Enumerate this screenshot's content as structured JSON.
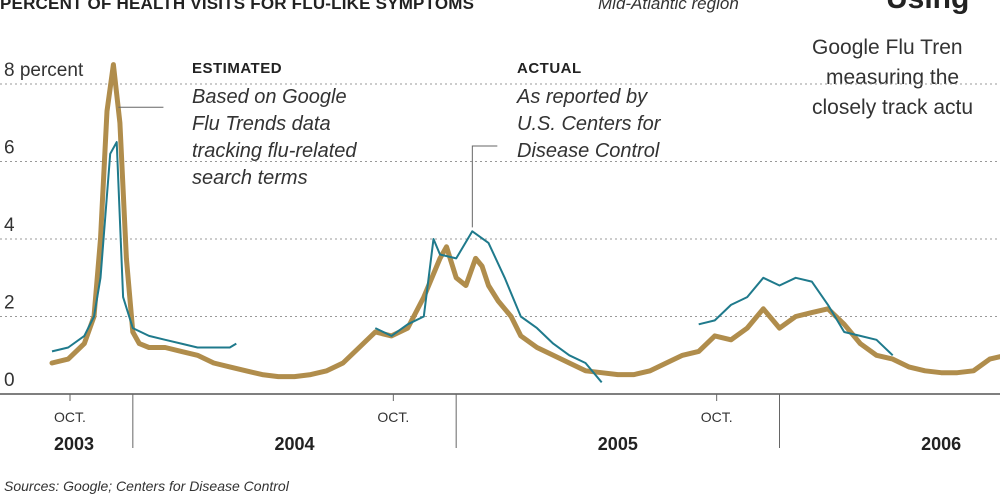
{
  "chart_data": {
    "type": "line",
    "title": "PERCENT OF HEALTH VISITS FOR FLU-LIKE SYMPTOMS",
    "subtitle": "Mid-Atlantic region",
    "xlabel": "",
    "ylabel": "",
    "ylim": [
      0,
      8
    ],
    "y_ticks": [
      {
        "value": 0,
        "label": "0"
      },
      {
        "value": 2,
        "label": "2"
      },
      {
        "value": 4,
        "label": "4"
      },
      {
        "value": 6,
        "label": "6"
      },
      {
        "value": 8,
        "label": "8 percent"
      }
    ],
    "grid": true,
    "x_markers": [
      {
        "label": "OCT.",
        "x": 2003.75
      },
      {
        "label": "OCT.",
        "x": 2004.75
      },
      {
        "label": "OCT.",
        "x": 2005.75
      }
    ],
    "year_labels": [
      {
        "label": "2003",
        "x": 2003.75
      },
      {
        "label": "2004",
        "x": 2004.5
      },
      {
        "label": "2005",
        "x": 2005.5
      },
      {
        "label": "2006",
        "x": 2006.5
      }
    ],
    "year_boundaries": [
      2004.0,
      2005.0,
      2006.0
    ],
    "series": [
      {
        "name": "ESTIMATED",
        "color": "#b08d4c",
        "x": [
          2003.75,
          2003.8,
          2003.85,
          2003.88,
          2003.9,
          2003.92,
          2003.94,
          2003.96,
          2003.98,
          2004.0,
          2004.02,
          2004.05,
          2004.1,
          2004.15,
          2004.2,
          2004.25,
          2004.3,
          2004.35,
          2004.4,
          2004.45,
          2004.5,
          2004.55,
          2004.6,
          2004.65,
          2004.7,
          2004.75,
          2004.8,
          2004.85,
          2004.9,
          2004.95,
          2004.97,
          2005.0,
          2005.03,
          2005.06,
          2005.08,
          2005.1,
          2005.13,
          2005.17,
          2005.2,
          2005.25,
          2005.3,
          2005.35,
          2005.4,
          2005.45,
          2005.5,
          2005.55,
          2005.6,
          2005.65,
          2005.7,
          2005.75,
          2005.8,
          2005.85,
          2005.9,
          2005.95,
          2006.0,
          2006.05,
          2006.1,
          2006.15,
          2006.2,
          2006.25,
          2006.3,
          2006.35,
          2006.4,
          2006.45,
          2006.5,
          2006.55,
          2006.6,
          2006.65,
          2006.7
        ],
        "values": [
          0.8,
          0.9,
          1.3,
          2.0,
          4.0,
          7.3,
          8.5,
          7.0,
          3.5,
          1.6,
          1.3,
          1.2,
          1.2,
          1.1,
          1.0,
          0.8,
          0.7,
          0.6,
          0.5,
          0.45,
          0.45,
          0.5,
          0.6,
          0.8,
          1.2,
          1.6,
          1.5,
          1.7,
          2.5,
          3.5,
          3.8,
          3.0,
          2.8,
          3.5,
          3.3,
          2.8,
          2.4,
          2.0,
          1.5,
          1.2,
          1.0,
          0.8,
          0.6,
          0.55,
          0.5,
          0.5,
          0.6,
          0.8,
          1.0,
          1.1,
          1.5,
          1.4,
          1.7,
          2.2,
          1.7,
          2.0,
          2.1,
          2.2,
          1.8,
          1.3,
          1.0,
          0.9,
          0.7,
          0.6,
          0.55,
          0.55,
          0.6,
          0.9,
          1.0
        ]
      },
      {
        "name": "ACTUAL",
        "color": "#1f7a8c",
        "x": [
          2003.75,
          2003.8,
          2003.85,
          2003.88,
          2003.9,
          2003.93,
          2003.95,
          2003.97,
          2004.0,
          2004.05,
          2004.1,
          2004.15,
          2004.2,
          2004.25,
          2004.3,
          2004.32,
          null,
          2004.75,
          2004.8,
          2004.85,
          2004.9,
          2004.93,
          2004.95,
          2005.0,
          2005.05,
          2005.1,
          2005.15,
          2005.2,
          2005.25,
          2005.3,
          2005.35,
          2005.4,
          2005.45,
          null,
          2005.75,
          2005.8,
          2005.85,
          2005.9,
          2005.95,
          2006.0,
          2006.05,
          2006.1,
          2006.15,
          2006.2,
          2006.25,
          2006.3,
          2006.35
        ],
        "values": [
          1.1,
          1.2,
          1.5,
          2.0,
          3.0,
          6.2,
          6.5,
          2.5,
          1.7,
          1.5,
          1.4,
          1.3,
          1.2,
          1.2,
          1.2,
          1.3,
          null,
          1.7,
          1.5,
          1.8,
          2.0,
          4.0,
          3.6,
          3.5,
          4.2,
          3.9,
          3.0,
          2.0,
          1.7,
          1.3,
          1.0,
          0.8,
          0.3,
          null,
          1.8,
          1.9,
          2.3,
          2.5,
          3.0,
          2.8,
          3.0,
          2.9,
          2.3,
          1.6,
          1.5,
          1.4,
          1.0
        ]
      }
    ],
    "annotations": [
      {
        "heading": "ESTIMATED",
        "lines": [
          "Based on Google",
          "Flu Trends data",
          "tracking flu-related",
          "search terms"
        ]
      },
      {
        "heading": "ACTUAL",
        "lines": [
          "As reported by",
          "U.S. Centers for",
          "Disease Control"
        ]
      }
    ],
    "source": "Sources: Google; Centers for Disease Control"
  },
  "side_panel": {
    "title": "Using",
    "lines": [
      "Google Flu Tren",
      "measuring the",
      "closely track actu"
    ]
  }
}
